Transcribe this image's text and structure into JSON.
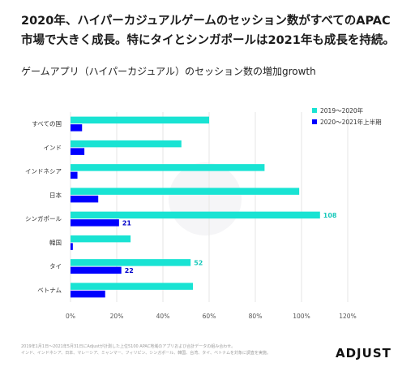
{
  "headline": {
    "line1": "2020年、ハイパーカジュアルゲームのセッション数がすべてのAPAC",
    "line2": "市場で大きく成長。特にタイとシンガポールは2021年も成長を持続。"
  },
  "subtitle": "ゲームアプリ（ハイパーカジュアル）のセッション数の増加growth",
  "chart_data": {
    "type": "bar",
    "orientation": "horizontal",
    "categories": [
      "すべての国",
      "インド",
      "インドネシア",
      "日本",
      "シンガポール",
      "韓国",
      "タイ",
      "ベトナム"
    ],
    "series": [
      {
        "name": "2019〜2020年",
        "color": "#19e3d3",
        "values": [
          60,
          48,
          84,
          99,
          108,
          26,
          52,
          53
        ]
      },
      {
        "name": "2020〜2021年上半期",
        "color": "#0000ff",
        "values": [
          5,
          6,
          3,
          12,
          21,
          1,
          22,
          15
        ]
      }
    ],
    "data_labels": [
      {
        "series": 0,
        "index": 4,
        "text": "108"
      },
      {
        "series": 1,
        "index": 4,
        "text": "21"
      },
      {
        "series": 0,
        "index": 6,
        "text": "52"
      },
      {
        "series": 1,
        "index": 6,
        "text": "22"
      }
    ],
    "xticks": [
      "0%",
      "20%",
      "40%",
      "60%",
      "80%",
      "100%",
      "120%"
    ],
    "xlim": [
      0,
      120
    ],
    "legend_position": "top-right",
    "grid": "vertical"
  },
  "footnote": {
    "line1": "2019年1月1日〜2021年5月31日にAdjustが計測した上位5100 APAC地域のアプリおよび合計データの組み合わせ。",
    "line2": "インド、インドネシア、日本、マレーシア、ミャンマー、フィリピン、シンガポール、韓国、台湾、タイ、ベトナムを対象に調査を実施。"
  },
  "logo": "ADJUST"
}
